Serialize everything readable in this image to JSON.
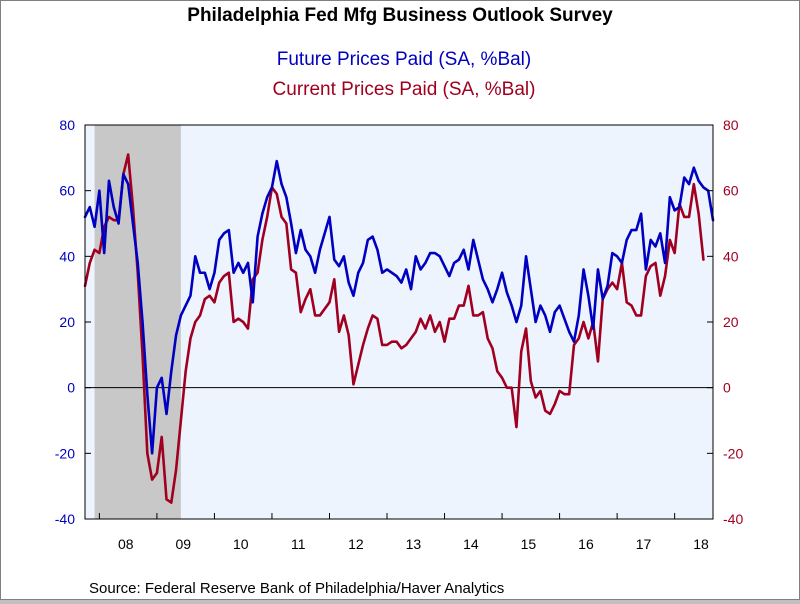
{
  "chart_data": {
    "type": "line",
    "title": "Philadelphia Fed Mfg Business Outlook Survey",
    "source": "Source:  Federal Reserve Bank of Philadelphia/Haver Analytics",
    "ylim": [
      -40,
      80
    ],
    "yticks": [
      -40,
      -20,
      0,
      20,
      40,
      60,
      80
    ],
    "grid": false,
    "x_start": "2007-10",
    "x_ticks": [
      "08",
      "09",
      "10",
      "11",
      "12",
      "13",
      "14",
      "15",
      "16",
      "17",
      "18"
    ],
    "recession": {
      "start": "2007-12",
      "end": "2009-06"
    },
    "series": [
      {
        "name": "Future Prices Paid (SA, %Bal)",
        "color": "#0000c0",
        "values": [
          52,
          55,
          49,
          60,
          41,
          63,
          55,
          50,
          65,
          62,
          50,
          38,
          20,
          -2,
          -20,
          0,
          3,
          -8,
          5,
          16,
          22,
          25,
          28,
          40,
          35,
          35,
          30,
          35,
          45,
          47,
          48,
          35,
          38,
          35,
          38,
          26,
          46,
          53,
          58,
          61,
          69,
          62,
          58,
          50,
          41,
          48,
          42,
          40,
          35,
          42,
          47,
          52,
          39,
          37,
          40,
          32,
          28,
          35,
          38,
          45,
          46,
          42,
          35,
          36,
          35,
          34,
          32,
          36,
          30,
          40,
          36,
          38,
          41,
          41,
          40,
          37,
          34,
          38,
          39,
          42,
          36,
          45,
          39,
          33,
          30,
          26,
          30,
          35,
          29,
          25,
          20,
          25,
          40,
          30,
          20,
          25,
          22,
          17,
          23,
          25,
          21,
          17,
          14,
          22,
          36,
          28,
          18,
          36,
          27,
          31,
          41,
          40,
          38,
          45,
          48,
          48,
          53,
          36,
          45,
          43,
          47,
          38,
          58,
          54,
          55,
          64,
          62,
          67,
          63,
          61,
          60,
          51
        ]
      },
      {
        "name": "Current Prices Paid (SA, %Bal)",
        "color": "#a00020",
        "values": [
          31,
          38,
          42,
          41,
          49,
          52,
          51,
          51,
          65,
          71,
          55,
          35,
          10,
          -20,
          -28,
          -26,
          -15,
          -34,
          -35,
          -25,
          -10,
          5,
          15,
          20,
          22,
          27,
          28,
          26,
          32,
          34,
          35,
          20,
          21,
          20,
          18,
          33,
          35,
          45,
          52,
          61,
          59,
          52,
          50,
          36,
          35,
          23,
          27,
          30,
          22,
          22,
          24,
          26,
          33,
          17,
          22,
          16,
          1,
          7,
          13,
          18,
          22,
          21,
          13,
          13,
          14,
          14,
          12,
          13,
          15,
          17,
          21,
          18,
          22,
          17,
          20,
          14,
          21,
          21,
          25,
          25,
          31,
          22,
          22,
          23,
          15,
          12,
          5,
          3,
          0,
          0,
          -12,
          11,
          18,
          2,
          -3,
          -1,
          -7,
          -8,
          -5,
          -1,
          -2,
          -2,
          13,
          15,
          20,
          15,
          20,
          8,
          27,
          30,
          32,
          30,
          38,
          26,
          25,
          22,
          22,
          34,
          37,
          38,
          28,
          34,
          45,
          41,
          56,
          52,
          52,
          62,
          53,
          39
        ]
      }
    ]
  }
}
